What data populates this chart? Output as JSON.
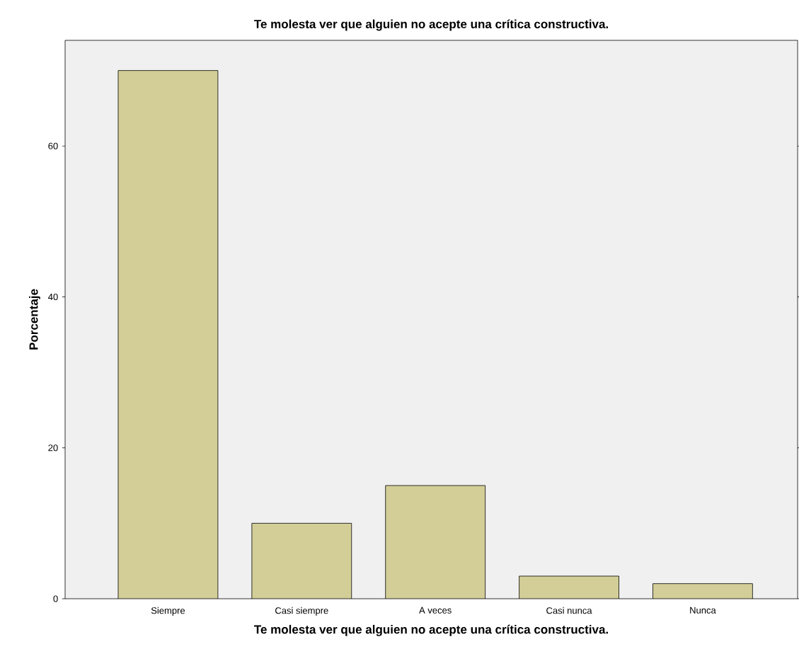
{
  "chart_data": {
    "type": "bar",
    "title": "Te molesta ver que alguien no acepte una crítica constructiva.",
    "xlabel": "Te molesta ver que alguien no acepte una crítica constructiva.",
    "ylabel": "Porcentaje",
    "categories": [
      "Siempre",
      "Casi siempre",
      "A veces",
      "Casi nunca",
      "Nunca"
    ],
    "values": [
      70,
      10,
      15,
      3,
      2
    ],
    "color": "#d3ce97",
    "ylim": [
      0,
      74
    ],
    "yticks": [
      0,
      20,
      40,
      60
    ],
    "grid": false
  }
}
